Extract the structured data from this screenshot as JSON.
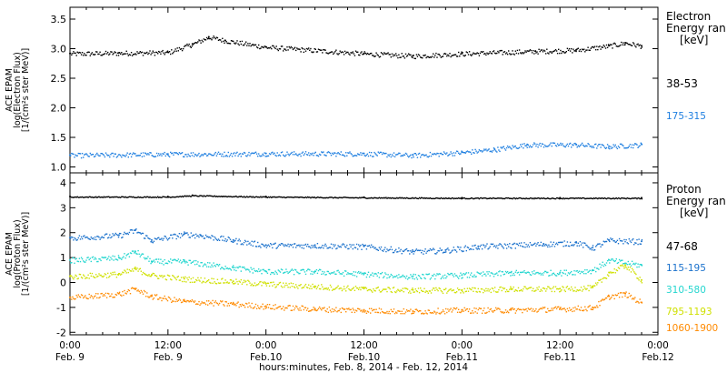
{
  "chart_data": [
    {
      "type": "scatter",
      "panel": "electron",
      "ylabel": [
        "ACE EPAM",
        "log(Electron Flux)",
        "[1/(cm²s ster MeV)]"
      ],
      "ylim": [
        0.9,
        3.7
      ],
      "yticks": [
        "1.0",
        "1.5",
        "2.0",
        "2.5",
        "3.0",
        "3.5"
      ],
      "legend_title": [
        "Electron",
        "Energy ran",
        "[keV]"
      ],
      "series": [
        {
          "name": "38-53",
          "color": "#000000",
          "points": [
            [
              0,
              2.92
            ],
            [
              6,
              2.93
            ],
            [
              12,
              2.94
            ],
            [
              15,
              3.08
            ],
            [
              17,
              3.2
            ],
            [
              19,
              3.14
            ],
            [
              24,
              3.03
            ],
            [
              36,
              2.92
            ],
            [
              42,
              2.88
            ],
            [
              48,
              2.92
            ],
            [
              57,
              2.96
            ],
            [
              62,
              2.98
            ],
            [
              66,
              3.05
            ],
            [
              68,
              3.1
            ],
            [
              70,
              3.05
            ]
          ]
        },
        {
          "name": "175-315",
          "color": "#1f7fe0",
          "points": [
            [
              0,
              1.2
            ],
            [
              12,
              1.22
            ],
            [
              24,
              1.23
            ],
            [
              36,
              1.23
            ],
            [
              42,
              1.2
            ],
            [
              48,
              1.25
            ],
            [
              52,
              1.3
            ],
            [
              56,
              1.38
            ],
            [
              62,
              1.38
            ],
            [
              66,
              1.35
            ],
            [
              70,
              1.38
            ]
          ]
        }
      ]
    },
    {
      "type": "scatter",
      "panel": "proton",
      "ylabel": [
        "ACE EPAM",
        "log(Proton Flux)",
        "[1/(cm²s ster MeV)]"
      ],
      "ylim": [
        -2.1,
        4.4
      ],
      "yticks": [
        "-2",
        "-1",
        "0",
        "1",
        "2",
        "3",
        "4"
      ],
      "legend_title": [
        "Proton",
        "Energy ran",
        "[keV]"
      ],
      "series": [
        {
          "name": "47-68",
          "color": "#000000",
          "points": [
            [
              0,
              3.45
            ],
            [
              12,
              3.45
            ],
            [
              15,
              3.5
            ],
            [
              24,
              3.45
            ],
            [
              36,
              3.42
            ],
            [
              48,
              3.4
            ],
            [
              60,
              3.4
            ],
            [
              70,
              3.4
            ]
          ]
        },
        {
          "name": "115-195",
          "color": "#1c72cc",
          "points": [
            [
              0,
              1.8
            ],
            [
              6,
              1.9
            ],
            [
              8,
              2.1
            ],
            [
              10,
              1.7
            ],
            [
              14,
              1.95
            ],
            [
              16,
              1.9
            ],
            [
              20,
              1.7
            ],
            [
              24,
              1.5
            ],
            [
              30,
              1.5
            ],
            [
              36,
              1.45
            ],
            [
              42,
              1.25
            ],
            [
              46,
              1.3
            ],
            [
              50,
              1.45
            ],
            [
              58,
              1.55
            ],
            [
              62,
              1.6
            ],
            [
              64,
              1.4
            ],
            [
              66,
              1.7
            ],
            [
              70,
              1.65
            ]
          ]
        },
        {
          "name": "310-580",
          "color": "#24d6cf",
          "points": [
            [
              0,
              0.9
            ],
            [
              6,
              1.0
            ],
            [
              8,
              1.25
            ],
            [
              10,
              0.85
            ],
            [
              14,
              0.85
            ],
            [
              20,
              0.6
            ],
            [
              24,
              0.45
            ],
            [
              30,
              0.45
            ],
            [
              36,
              0.35
            ],
            [
              42,
              0.25
            ],
            [
              48,
              0.3
            ],
            [
              54,
              0.4
            ],
            [
              60,
              0.4
            ],
            [
              64,
              0.5
            ],
            [
              66,
              0.9
            ],
            [
              70,
              0.7
            ]
          ]
        },
        {
          "name": "795-1193",
          "color": "#cfe000",
          "points": [
            [
              0,
              0.25
            ],
            [
              6,
              0.35
            ],
            [
              8,
              0.55
            ],
            [
              10,
              0.3
            ],
            [
              14,
              0.15
            ],
            [
              20,
              0.05
            ],
            [
              24,
              -0.05
            ],
            [
              30,
              -0.15
            ],
            [
              36,
              -0.25
            ],
            [
              42,
              -0.3
            ],
            [
              48,
              -0.3
            ],
            [
              54,
              -0.25
            ],
            [
              60,
              -0.25
            ],
            [
              64,
              -0.2
            ],
            [
              66,
              0.4
            ],
            [
              68,
              0.7
            ],
            [
              70,
              0.1
            ]
          ]
        },
        {
          "name": "1060-1900",
          "color": "#ff8a00",
          "points": [
            [
              0,
              -0.6
            ],
            [
              6,
              -0.45
            ],
            [
              8,
              -0.25
            ],
            [
              10,
              -0.55
            ],
            [
              14,
              -0.75
            ],
            [
              20,
              -0.85
            ],
            [
              24,
              -0.95
            ],
            [
              30,
              -1.05
            ],
            [
              36,
              -1.1
            ],
            [
              42,
              -1.15
            ],
            [
              48,
              -1.1
            ],
            [
              54,
              -1.1
            ],
            [
              60,
              -1.05
            ],
            [
              64,
              -1.0
            ],
            [
              66,
              -0.55
            ],
            [
              68,
              -0.45
            ],
            [
              70,
              -0.8
            ]
          ]
        }
      ]
    }
  ],
  "x_axis": {
    "range_hours": [
      0,
      72
    ],
    "tick_hours": [
      0,
      12,
      24,
      36,
      48,
      60,
      72
    ],
    "tick_labels": [
      [
        "0:00",
        "Feb. 9"
      ],
      [
        "12:00",
        "Feb. 9"
      ],
      [
        "0:00",
        "Feb.10"
      ],
      [
        "12:00",
        "Feb.10"
      ],
      [
        "0:00",
        "Feb.11"
      ],
      [
        "12:00",
        "Feb.11"
      ],
      [
        "0:00",
        "Feb.12"
      ]
    ],
    "title": "hours:minutes, Feb.  8, 2014 - Feb. 12, 2014"
  }
}
